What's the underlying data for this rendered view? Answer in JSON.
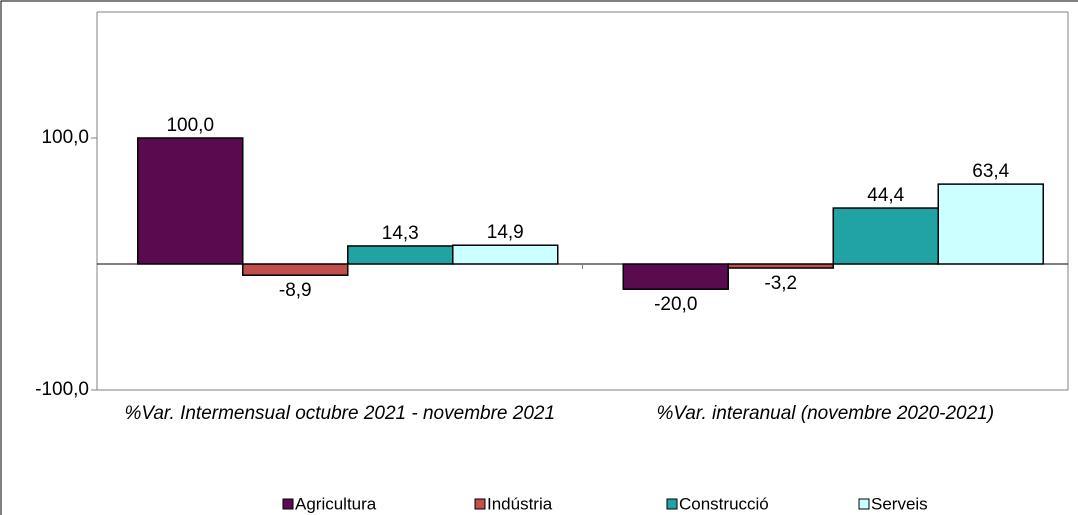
{
  "chart_data": {
    "type": "bar",
    "categories": [
      "%Var. Intermensual octubre 2021 - novembre 2021",
      "%Var. interanual (novembre 2020-2021)"
    ],
    "series": [
      {
        "name": "Agricultura",
        "color": "#5a0a4e",
        "values": [
          100.0,
          -20.0
        ],
        "value_labels": [
          "100,0",
          "-20,0"
        ]
      },
      {
        "name": "Indústria",
        "color": "#c0504d",
        "values": [
          -8.9,
          -3.2
        ],
        "value_labels": [
          "-8,9",
          "-3,2"
        ]
      },
      {
        "name": "Construcció",
        "color": "#22a3a3",
        "values": [
          14.3,
          44.4
        ],
        "value_labels": [
          "14,3",
          "44,4"
        ]
      },
      {
        "name": "Serveis",
        "color": "#ccffff",
        "values": [
          14.9,
          63.4
        ],
        "value_labels": [
          "14,9",
          "63,4"
        ]
      }
    ],
    "ylim": [
      -100,
      200
    ],
    "yticks": [
      {
        "value": -100,
        "label": "-100,0"
      },
      {
        "value": 100,
        "label": "100,0"
      }
    ]
  }
}
